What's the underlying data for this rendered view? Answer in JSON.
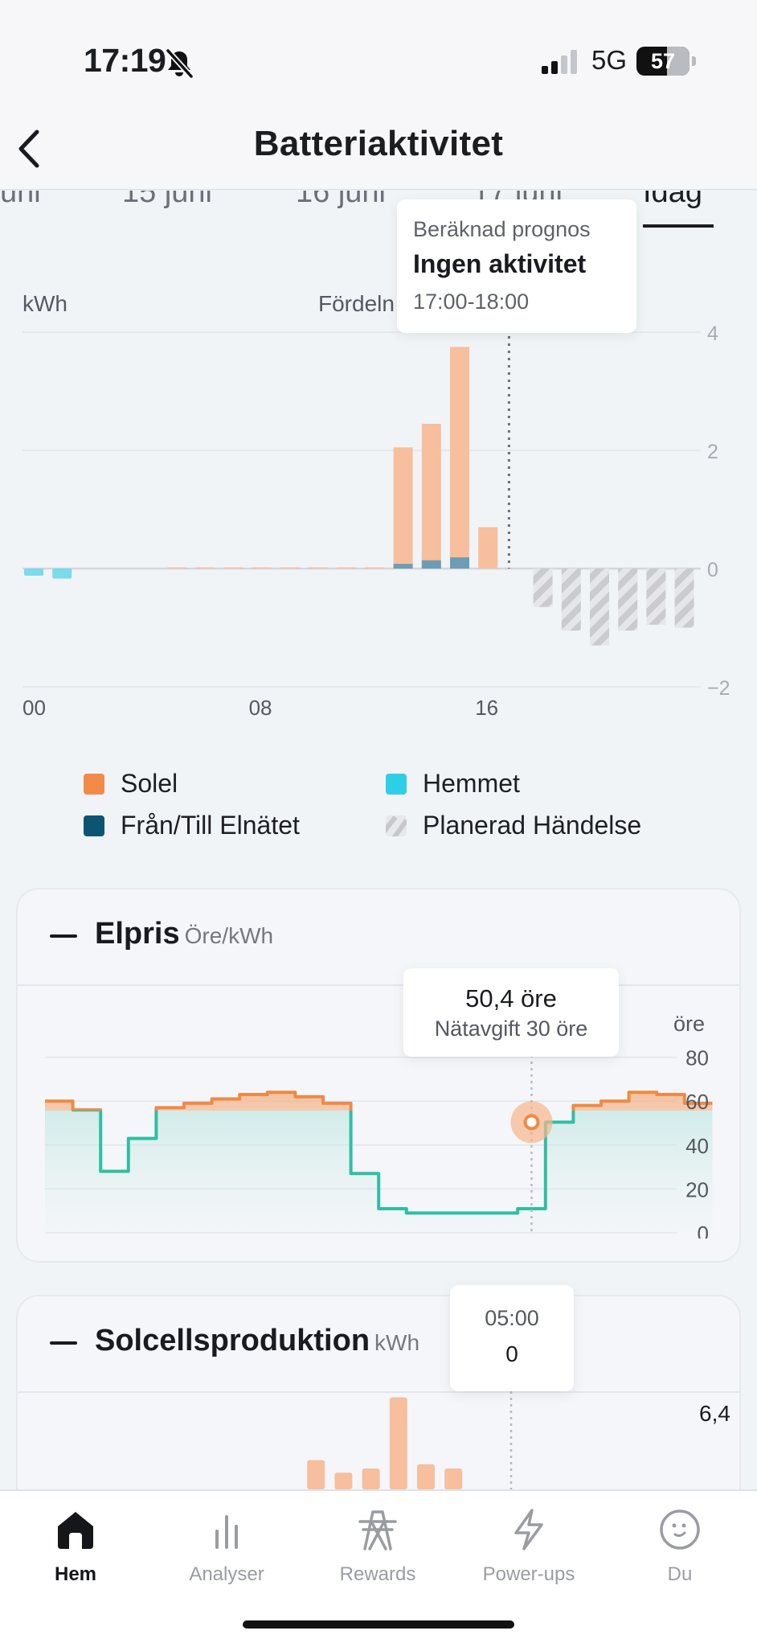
{
  "status_bar": {
    "time": "17:19",
    "network": "5G",
    "battery": "57"
  },
  "header": {
    "title": "Batteriaktivitet"
  },
  "date_tabs": [
    {
      "label": "uni",
      "selected": false
    },
    {
      "label": "15 juni",
      "selected": false
    },
    {
      "label": "16 juni",
      "selected": false
    },
    {
      "label": "17 juni",
      "selected": false
    },
    {
      "label": "Idag",
      "selected": true
    }
  ],
  "battery_chart": {
    "unit_label": "kWh",
    "mode_label": "Fördeln",
    "tooltip": {
      "subtitle": "Beräknad prognos",
      "title": "Ingen aktivitet",
      "range": "17:00-18:00"
    },
    "chart_data": {
      "type": "bar",
      "x": [
        0,
        1,
        2,
        3,
        4,
        5,
        6,
        7,
        8,
        9,
        10,
        11,
        12,
        13,
        14,
        15,
        16,
        17,
        18,
        19,
        20,
        21,
        22,
        23
      ],
      "x_tick_labels": [
        "00",
        "08",
        "16"
      ],
      "y_ticks": [
        "4",
        "2",
        "0",
        "−2"
      ],
      "ylim": [
        -2,
        4
      ],
      "series": [
        {
          "name": "Solel",
          "values": [
            0,
            0,
            0,
            0,
            0,
            0.02,
            0.02,
            0.02,
            0.02,
            0.02,
            0.02,
            0.02,
            0.02,
            2.05,
            2.45,
            3.75,
            0.7,
            0,
            0,
            0,
            0,
            0,
            0,
            0
          ]
        },
        {
          "name": "Hemmet",
          "values": [
            -0.12,
            -0.17,
            0,
            0,
            0,
            0,
            0,
            0,
            0,
            0,
            0,
            0,
            0,
            0,
            0,
            0,
            0,
            0,
            0,
            0,
            0,
            0,
            0,
            0
          ]
        },
        {
          "name": "Från/Till Elnätet",
          "values": [
            0,
            0,
            0,
            0,
            0,
            0,
            0,
            0,
            0,
            0,
            0,
            0,
            0,
            0.08,
            0.14,
            0.19,
            0,
            0,
            0,
            0,
            0,
            0,
            0,
            0
          ]
        },
        {
          "name": "Planerad Händelse",
          "values": [
            0,
            0,
            0,
            0,
            0,
            0,
            0,
            0,
            0,
            0,
            0,
            0,
            0,
            0,
            0,
            0,
            0,
            0,
            -0.65,
            -1.05,
            -1.3,
            -1.05,
            -0.95,
            -1.0
          ]
        }
      ],
      "current_hour": 17
    }
  },
  "legend": {
    "items": [
      {
        "label": "Solel",
        "color": "#f28a4a",
        "pattern": false
      },
      {
        "label": "Hemmet",
        "color": "#2ecfe6",
        "pattern": false
      },
      {
        "label": "Från/Till Elnätet",
        "color": "#0d5474",
        "pattern": false
      },
      {
        "label": "Planerad Händelse",
        "color": "#c9cbcf",
        "pattern": true
      }
    ]
  },
  "price_card": {
    "title": "Elpris",
    "unit": "Öre/kWh",
    "y_unit": "öre",
    "tooltip": {
      "value": "50,4 öre",
      "fee": "Nätavgift 30 öre"
    },
    "chart_data": {
      "type": "line",
      "x": [
        0,
        1,
        2,
        3,
        4,
        5,
        6,
        7,
        8,
        9,
        10,
        11,
        12,
        13,
        14,
        15,
        16,
        17,
        18,
        19,
        20,
        21,
        22,
        23
      ],
      "ylim": [
        0,
        80
      ],
      "y_ticks": [
        "80",
        "60",
        "40",
        "20",
        "0"
      ],
      "series": [
        {
          "name": "Elpris",
          "values": [
            60,
            56,
            28,
            43,
            57,
            59,
            61,
            63,
            64,
            62,
            59,
            27,
            11,
            9,
            9,
            9,
            9,
            11,
            50.4,
            58,
            60,
            64,
            63,
            59
          ]
        }
      ],
      "current_hour": 17.5
    }
  },
  "solar_card": {
    "title": "Solcellsproduktion",
    "unit": "kWh",
    "tooltip": {
      "time": "05:00",
      "value": "0"
    },
    "max_label": "6,4",
    "chart_data": {
      "type": "bar",
      "series": [
        {
          "name": "Solcellsproduktion",
          "values": [
            0,
            0,
            0,
            0,
            0,
            0,
            0,
            0,
            0,
            0,
            0,
            0.7,
            0.4,
            0.5,
            2.2,
            0.6,
            0.5,
            0,
            0,
            0,
            0,
            0,
            0,
            0
          ]
        }
      ],
      "ymax": 6.4
    }
  },
  "bottom_nav": [
    {
      "label": "Hem",
      "icon": "home-icon",
      "active": true
    },
    {
      "label": "Analyser",
      "icon": "bar-chart-icon",
      "active": false
    },
    {
      "label": "Rewards",
      "icon": "pylon-icon",
      "active": false
    },
    {
      "label": "Power-ups",
      "icon": "lightning-icon",
      "active": false
    },
    {
      "label": "Du",
      "icon": "face-icon",
      "active": false
    }
  ]
}
